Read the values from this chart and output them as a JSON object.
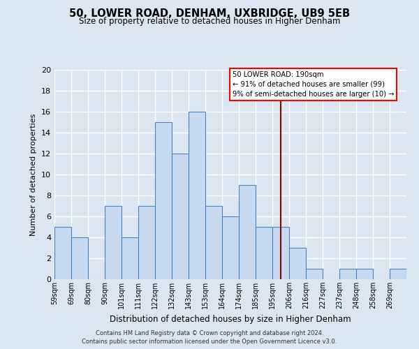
{
  "title": "50, LOWER ROAD, DENHAM, UXBRIDGE, UB9 5EB",
  "subtitle": "Size of property relative to detached houses in Higher Denham",
  "xlabel": "Distribution of detached houses by size in Higher Denham",
  "ylabel": "Number of detached properties",
  "bin_labels": [
    "59sqm",
    "69sqm",
    "80sqm",
    "90sqm",
    "101sqm",
    "111sqm",
    "122sqm",
    "132sqm",
    "143sqm",
    "153sqm",
    "164sqm",
    "174sqm",
    "185sqm",
    "195sqm",
    "206sqm",
    "216sqm",
    "227sqm",
    "237sqm",
    "248sqm",
    "258sqm",
    "269sqm"
  ],
  "counts": [
    5,
    4,
    0,
    7,
    4,
    7,
    15,
    12,
    16,
    7,
    6,
    9,
    5,
    5,
    3,
    1,
    0,
    1,
    1,
    0,
    1
  ],
  "bar_color": "#c6d9f0",
  "bar_edge_color": "#4f81bd",
  "reference_line_index": 13.5,
  "annotation_text_line1": "50 LOWER ROAD: 190sqm",
  "annotation_text_line2": "← 91% of detached houses are smaller (99)",
  "annotation_text_line3": "9% of semi-detached houses are larger (10) →",
  "bg_color": "#dce6f1",
  "plot_bg_color": "#dce6f1",
  "grid_color": "#ffffff",
  "ylim": [
    0,
    20
  ],
  "yticks": [
    0,
    2,
    4,
    6,
    8,
    10,
    12,
    14,
    16,
    18,
    20
  ],
  "footer_line1": "Contains HM Land Registry data © Crown copyright and database right 2024.",
  "footer_line2": "Contains public sector information licensed under the Open Government Licence v3.0."
}
